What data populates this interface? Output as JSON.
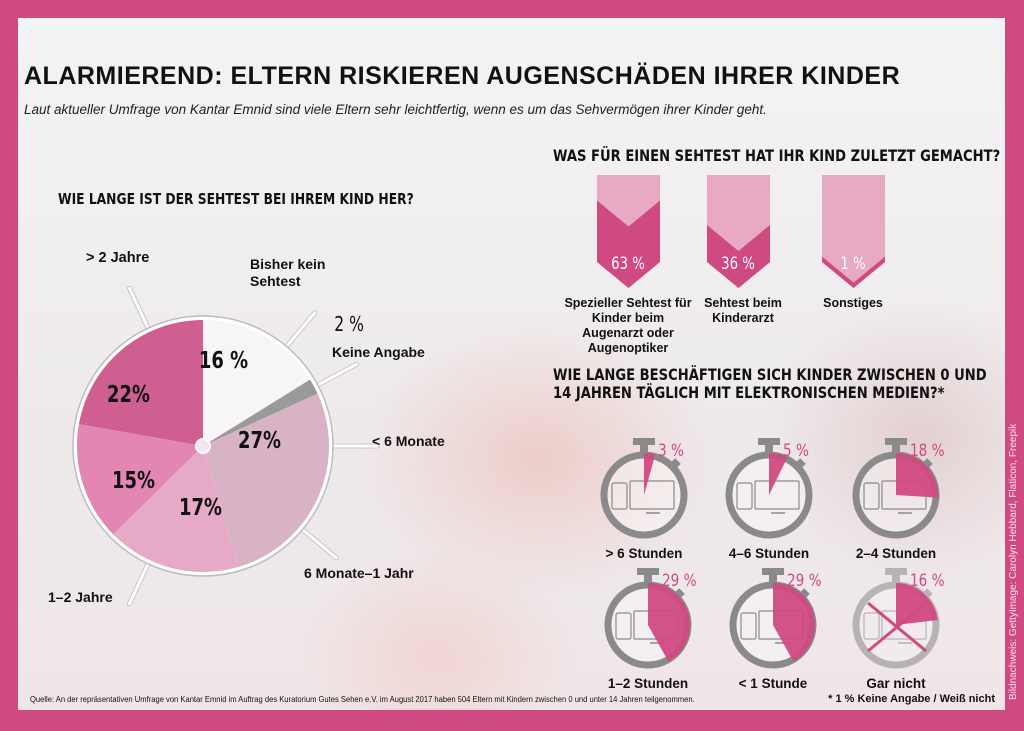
{
  "header": {
    "title": "ALARMIEREND: ELTERN RISKIEREN AUGENSCHÄDEN IHRER KINDER",
    "subtitle": "Laut aktueller Umfrage von Kantar Emnid sind viele Eltern sehr leichtfertig, wenn es um das Sehvermögen ihrer Kinder geht."
  },
  "colors": {
    "brand": "#d04a82",
    "light_pink": "#e8a9c3",
    "gray": "#8a8a8a"
  },
  "chart_data": [
    {
      "type": "pie",
      "title": "WIE LANGE IST DER SEHTEST BEI IHREM KIND HER?",
      "slices": [
        {
          "label": "Bisher kein Sehtest",
          "value": 16,
          "value_label": "16 %",
          "color": "#f7f5f6"
        },
        {
          "label": "Keine Angabe",
          "value": 2,
          "value_label": "2 %",
          "color": "#9a9a9a"
        },
        {
          "label": "< 6 Monate",
          "value": 27,
          "value_label": "27%",
          "color": "#d8b3c6"
        },
        {
          "label": "6 Monate–1 Jahr",
          "value": 17,
          "value_label": "17%",
          "color": "#e6a9c6"
        },
        {
          "label": "1–2 Jahre",
          "value": 15,
          "value_label": "15%",
          "color": "#e486b3"
        },
        {
          "label": "> 2 Jahre",
          "value": 22,
          "value_label": "22%",
          "color": "#cf5f91"
        }
      ]
    },
    {
      "type": "bar",
      "title": "WAS FÜR EINEN SEHTEST HAT IHR KIND ZULETZT GEMACHT?",
      "categories": [
        "Spezieller Sehtest für Kinder beim Augenarzt oder Augenoptiker",
        "Sehtest beim Kinderarzt",
        "Sonstiges"
      ],
      "values": [
        63,
        36,
        1
      ],
      "value_labels": [
        "63 %",
        "36 %",
        "1 %"
      ],
      "ylim": [
        0,
        100
      ]
    },
    {
      "type": "pie",
      "title": "WIE LANGE BESCHÄFTIGEN SICH KINDER ZWISCHEN 0 UND 14 JAHREN TÄGLICH MIT ELEKTRONISCHEN MEDIEN?*",
      "categories": [
        "> 6 Stunden",
        "4–6 Stunden",
        "2–4 Stunden",
        "1–2 Stunden",
        "< 1 Stunde",
        "Gar nicht"
      ],
      "values": [
        3,
        5,
        18,
        29,
        29,
        16
      ],
      "value_labels": [
        "3 %",
        "5 %",
        "18 %",
        "29 %",
        "29 %",
        "16 %"
      ],
      "icons": [
        "stopwatch-icon",
        "smartphone-icon",
        "monitor-icon"
      ]
    }
  ],
  "footer": {
    "source": "Quelle: An der repräsentativen Umfrage von Kantar Emnid im Auftrag des Kuratorium Gutes Sehen e.V. im August 2017 haben 504 Eltern mit Kindern zwischen 0 und unter 14 Jahren teilgenommen.",
    "footnote": "* 1 % Keine Angabe / Weiß nicht",
    "credit": "Bildnachweis: GettyImage: Carolyn Hebbard, Flaticon, Freepik"
  }
}
